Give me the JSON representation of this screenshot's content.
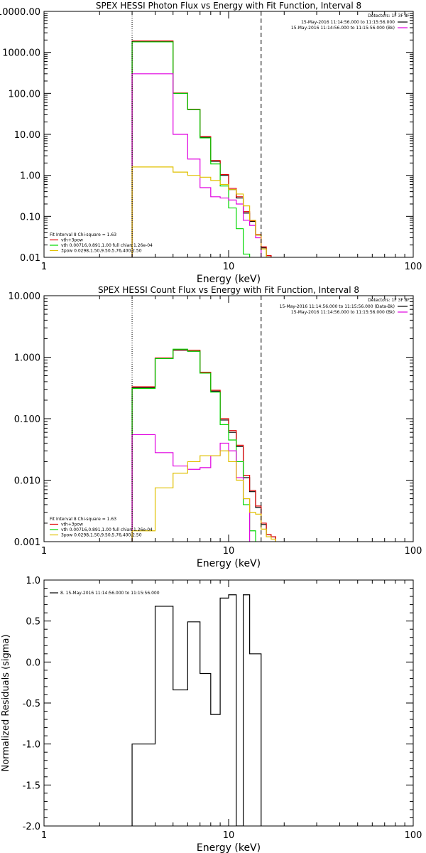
{
  "colors": {
    "background": "#ffffff",
    "axes": "#000000",
    "black": "#000000",
    "red": "#e00000",
    "green": "#00d800",
    "magenta": "#e000e0",
    "yellow": "#e0c000"
  },
  "chart_data": [
    {
      "type": "line",
      "title": "SPEX HESSI Photon Flux vs Energy with Fit Function, Interval 8",
      "xlabel": "Energy (keV)",
      "ylabel": "",
      "xscale": "log",
      "yscale": "log",
      "xlim": [
        1,
        100
      ],
      "ylim": [
        0.01,
        10000
      ],
      "xticks": [
        1,
        10,
        100
      ],
      "xtick_labels": [
        "1",
        "10",
        "100"
      ],
      "yticks": [
        0.01,
        0.1,
        1,
        10,
        100,
        1000,
        10000
      ],
      "ytick_labels": [
        "0.01",
        "0.10",
        "1.00",
        "10.00",
        "100.00",
        "1000.00",
        "10000.00"
      ],
      "vlines": [
        {
          "x": 3.0,
          "style": "dotted"
        },
        {
          "x": 15.0,
          "style": "dashed"
        }
      ],
      "legend_header": "Detectors: 1F 3F 8F",
      "legend": [
        {
          "label": "15-May-2016 11:14:56.000 to 11:15:56.000",
          "color": "#000000"
        },
        {
          "label": "15-May-2016 11:14:56.000 to 11:15:56.000 (Bk)",
          "color": "#e000e0"
        }
      ],
      "fit_legend": [
        {
          "label": "Fit Interval 8   Chi-square = 1.63",
          "color": ""
        },
        {
          "label": "vth+3pow",
          "color": "#e00000"
        },
        {
          "label": "vth 0.00716,0.891,1.00   full chian 1.26e-04",
          "color": "#00d800"
        },
        {
          "label": "3pow 0.0298,1.50,9.50,5.76,400,2.50",
          "color": "#e0c000"
        }
      ],
      "edges": [
        3,
        4,
        5,
        6,
        7,
        8,
        9,
        10,
        11,
        12,
        13,
        14,
        15,
        16,
        17,
        18
      ],
      "series": [
        {
          "color": "#000000",
          "values": [
            1850,
            1850,
            100,
            40,
            8.5,
            2.2,
            1.0,
            0.45,
            0.28,
            0.12,
            0.075,
            0.035,
            0.017,
            0.011,
            0.009
          ]
        },
        {
          "color": "#e00000",
          "values": [
            1900,
            1900,
            102,
            41,
            8.8,
            2.3,
            1.05,
            0.48,
            0.3,
            0.13,
            0.078,
            0.036,
            0.018,
            0.011,
            0.009
          ]
        },
        {
          "color": "#00d800",
          "values": [
            1800,
            1800,
            100,
            40,
            8.2,
            1.9,
            0.55,
            0.16,
            0.05,
            0.012,
            0.004
          ]
        },
        {
          "color": "#e000e0",
          "values": [
            300,
            300,
            10,
            2.5,
            0.5,
            0.3,
            0.28,
            0.25,
            0.2,
            0.08,
            0.06,
            0.03
          ]
        },
        {
          "color": "#e0c000",
          "values": [
            1.6,
            1.6,
            1.2,
            1.0,
            0.9,
            0.75,
            0.6,
            0.45,
            0.35,
            0.18,
            0.08,
            0.035,
            0.016,
            0.01,
            0.009
          ]
        }
      ]
    },
    {
      "type": "line",
      "title": "SPEX HESSI Count Flux vs Energy with Fit Function, Interval 8",
      "xlabel": "Energy (keV)",
      "ylabel": "",
      "xscale": "log",
      "yscale": "log",
      "xlim": [
        1,
        100
      ],
      "ylim": [
        0.001,
        10
      ],
      "xticks": [
        1,
        10,
        100
      ],
      "xtick_labels": [
        "1",
        "10",
        "100"
      ],
      "yticks": [
        0.001,
        0.01,
        0.1,
        1,
        10
      ],
      "ytick_labels": [
        "0.001",
        "0.010",
        "0.100",
        "1.000",
        "10.000"
      ],
      "vlines": [
        {
          "x": 3.0,
          "style": "dotted"
        },
        {
          "x": 15.0,
          "style": "dashed"
        }
      ],
      "legend_header": "Detectors: 1F 3F 8F",
      "legend": [
        {
          "label": "15-May-2016 11:14:56.000 to 11:15:56.000 (Data-Bk)",
          "color": "#000000"
        },
        {
          "label": "15-May-2016 11:14:56.000 to 11:15:56.000 (Bk)",
          "color": "#e000e0"
        }
      ],
      "fit_legend": [
        {
          "label": "Fit Interval 8   Chi-square = 1.63",
          "color": ""
        },
        {
          "label": "vth+3pow",
          "color": "#e00000"
        },
        {
          "label": "vth 0.00716,0.891,1.00   full chian 1.26e-04",
          "color": "#00d800"
        },
        {
          "label": "3pow 0.0298,1.50,9.50,5.76,400,2.50",
          "color": "#e0c000"
        }
      ],
      "edges": [
        3,
        4,
        5,
        6,
        7,
        8,
        9,
        10,
        11,
        12,
        13,
        14,
        15,
        16,
        17,
        18
      ],
      "series": [
        {
          "color": "#000000",
          "values": [
            0.32,
            0.95,
            1.3,
            1.25,
            0.55,
            0.28,
            0.095,
            0.06,
            0.035,
            0.011,
            0.0065,
            0.0036,
            0.0019,
            0.0013,
            0.0012
          ]
        },
        {
          "color": "#e00000",
          "values": [
            0.33,
            0.97,
            1.32,
            1.3,
            0.57,
            0.29,
            0.1,
            0.064,
            0.037,
            0.012,
            0.0068,
            0.0038,
            0.002,
            0.0013,
            0.0012
          ]
        },
        {
          "color": "#00d800",
          "values": [
            0.31,
            0.95,
            1.35,
            1.25,
            0.55,
            0.27,
            0.08,
            0.045,
            0.02,
            0.004,
            0.0015
          ]
        },
        {
          "color": "#e000e0",
          "values": [
            0.055,
            0.028,
            0.017,
            0.015,
            0.016,
            0.025,
            0.04,
            0.03,
            0.011,
            0.005
          ]
        },
        {
          "color": "#e0c000",
          "values": [
            0.0015,
            0.0075,
            0.013,
            0.02,
            0.025,
            0.025,
            0.03,
            0.02,
            0.01,
            0.005,
            0.003,
            0.0028,
            0.0016,
            0.0012,
            0.0011
          ]
        }
      ]
    },
    {
      "type": "line",
      "title": "",
      "xlabel": "Energy (keV)",
      "ylabel": "Normalized Residuals (sigma)",
      "xscale": "log",
      "yscale": "linear",
      "xlim": [
        1,
        100
      ],
      "ylim": [
        -2.0,
        1.0
      ],
      "xticks": [
        1,
        10,
        100
      ],
      "xtick_labels": [
        "1",
        "10",
        "100"
      ],
      "yticks": [
        -2.0,
        -1.5,
        -1.0,
        -0.5,
        0.0,
        0.5,
        1.0
      ],
      "ytick_labels": [
        "-2.0",
        "-1.5",
        "-1.0",
        "-0.5",
        "0.0",
        "0.5",
        "1.0"
      ],
      "legend": [
        {
          "label": "8. 15-May-2016 11:14:56.000 to 11:15:56.000",
          "color": "#000000"
        }
      ],
      "edges": [
        3,
        4,
        5,
        6,
        7,
        8,
        9,
        10,
        11,
        12,
        13,
        14,
        15
      ],
      "series": [
        {
          "color": "#000000",
          "values": [
            -1.0,
            0.68,
            -0.34,
            0.49,
            -0.14,
            -0.64,
            0.78,
            0.82,
            -2.0,
            0.82,
            0.1,
            0.1
          ]
        }
      ]
    }
  ]
}
